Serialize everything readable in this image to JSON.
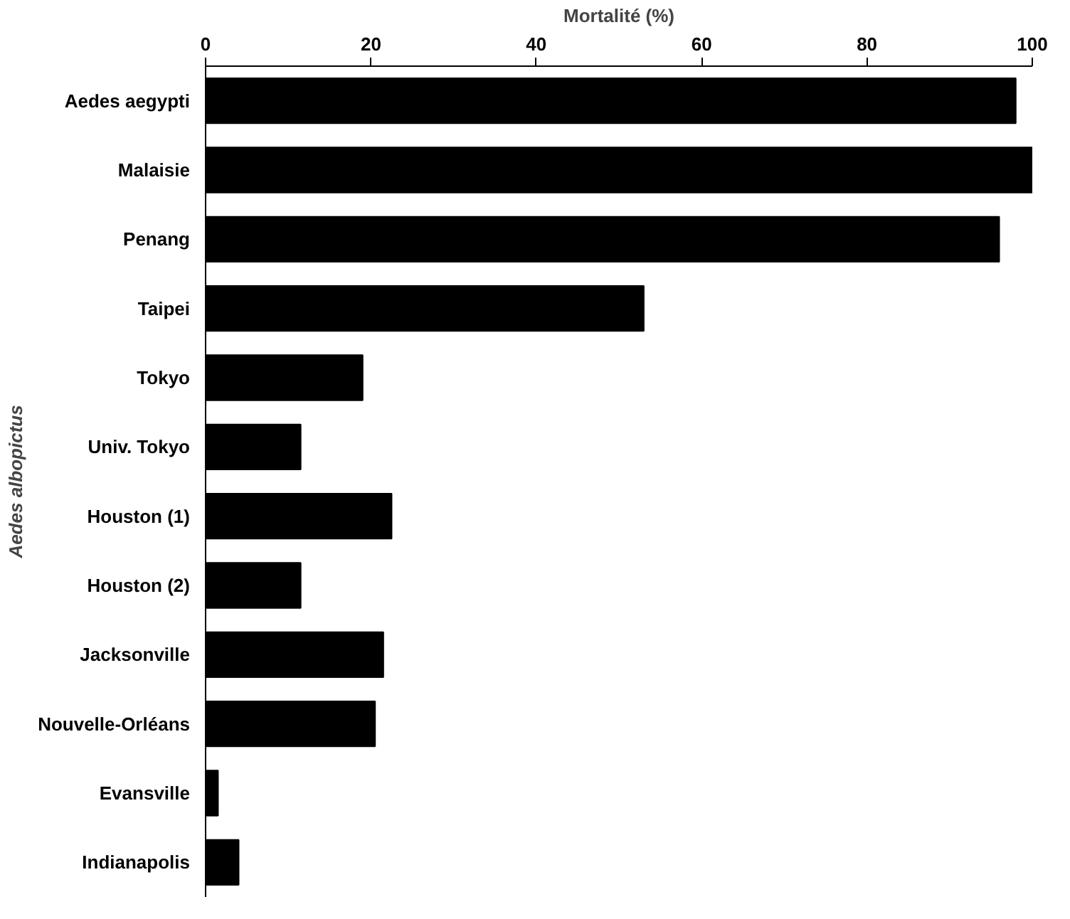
{
  "chart_data": {
    "type": "bar",
    "orientation": "horizontal",
    "xlabel": "Mortalité (%)",
    "ylabel": "Aedes albopictus",
    "categories": [
      "Aedes aegypti",
      "Malaisie",
      "Penang",
      "Taipei",
      "Tokyo",
      "Univ. Tokyo",
      "Houston (1)",
      "Houston (2)",
      "Jacksonville",
      "Nouvelle-Orléans",
      "Evansville",
      "Indianapolis"
    ],
    "values": [
      98,
      100,
      96,
      53,
      19,
      11.5,
      22.5,
      11.5,
      21.5,
      20.5,
      1.5,
      4
    ],
    "color": "#000000",
    "xlim": [
      0,
      100
    ],
    "xticks": [
      0,
      20,
      40,
      60,
      80,
      100
    ],
    "grid": false
  }
}
